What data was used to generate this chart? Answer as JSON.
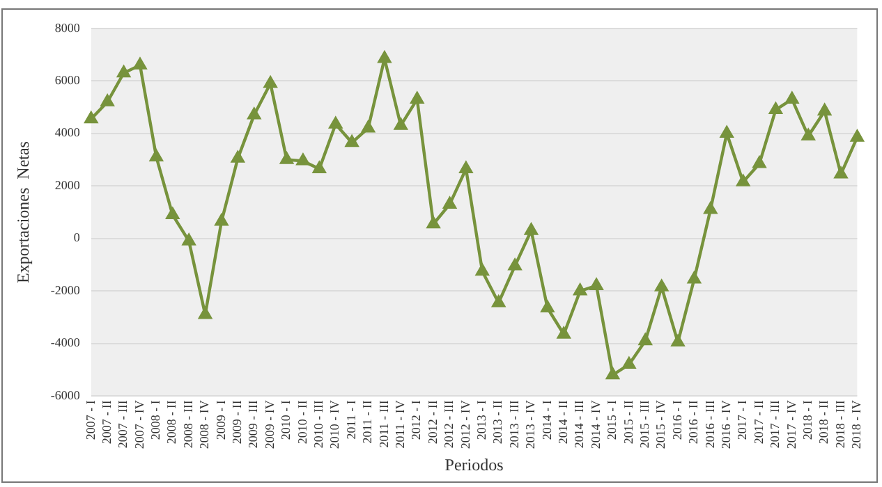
{
  "chart_data": {
    "type": "line",
    "xlabel": "Periodos",
    "ylabel": "Exportaciones  Netas",
    "categories": [
      "2007 - I",
      "2007 - II",
      "2007 - III",
      "2007 - IV",
      "2008 - I",
      "2008 - II",
      "2008 - III",
      "2008 - IV",
      "2009 - I",
      "2009 - II",
      "2009 - III",
      "2009 - IV",
      "2010 - I",
      "2010 - II",
      "2010 - III",
      "2010 - IV",
      "2011 - I",
      "2011 - II",
      "2011 - III",
      "2011 - IV",
      "2012 - I",
      "2012 - II",
      "2012 - III",
      "2012 - IV",
      "2013 - I",
      "2013 - II",
      "2013 - III",
      "2013 - IV",
      "2014 - I",
      "2014 - II",
      "2014 - III",
      "2014 - IV",
      "2015 - I",
      "2015 - II",
      "2015 - III",
      "2015 - IV",
      "2016 - I",
      "2016 - II",
      "2016 - III",
      "2016 - IV",
      "2017 - I",
      "2017 - II",
      "2017 - III",
      "2017 - IV",
      "2018 - I",
      "2018 - II",
      "2018 - III",
      "2018 - IV"
    ],
    "series": [
      {
        "color": "#77933c",
        "values": [
          4550,
          5200,
          6300,
          6600,
          3100,
          900,
          -100,
          -2900,
          650,
          3050,
          4700,
          5900,
          3000,
          2950,
          2650,
          4350,
          3650,
          4200,
          6850,
          4300,
          5300,
          550,
          1300,
          2650,
          -1250,
          -2450,
          -1050,
          300,
          -2650,
          -3650,
          -2000,
          -1800,
          -5200,
          -4800,
          -3900,
          -1850,
          -3950,
          -1550,
          1100,
          4000,
          2150,
          2850,
          4900,
          5300,
          3900,
          4850,
          2450,
          3850
        ]
      }
    ],
    "ylim": [
      -6000,
      8000
    ],
    "yticks": [
      -6000,
      -4000,
      -2000,
      0,
      2000,
      4000,
      6000,
      8000
    ],
    "grid": "y",
    "legend": false,
    "marker": "triangle",
    "line_style": "solid"
  }
}
